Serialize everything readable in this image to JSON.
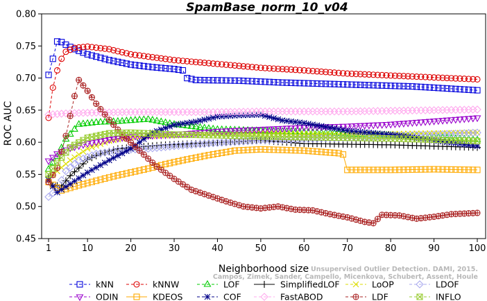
{
  "chart_data": {
    "type": "line",
    "title": "SpamBase_norm_10_v04",
    "xlabel": "Neighborhood size",
    "ylabel": "ROC AUC",
    "xlim": [
      1,
      100
    ],
    "ylim": [
      0.45,
      0.8
    ],
    "xticks": [
      1,
      10,
      20,
      30,
      40,
      50,
      60,
      70,
      80,
      90,
      100
    ],
    "yticks": [
      "0.45",
      "0.50",
      "0.55",
      "0.60",
      "0.65",
      "0.70",
      "0.75",
      "0.80"
    ],
    "grid": false,
    "legend_position": "bottom",
    "watermark": [
      "Unsupervised Outlier Detection. DAMI, 2015.",
      "Campos, Zimek, Sander, Campello, Micenkova, Schubert, Assent, Houle"
    ],
    "series": [
      {
        "name": "kNN",
        "color": "#0000dd",
        "marker": "square",
        "dashed": true,
        "points": [
          [
            1,
            0.705
          ],
          [
            2,
            0.73
          ],
          [
            3,
            0.757
          ],
          [
            4,
            0.756
          ],
          [
            5,
            0.752
          ],
          [
            7,
            0.745
          ],
          [
            10,
            0.737
          ],
          [
            15,
            0.728
          ],
          [
            20,
            0.721
          ],
          [
            25,
            0.717
          ],
          [
            30,
            0.714
          ],
          [
            32,
            0.712
          ],
          [
            33,
            0.7
          ],
          [
            35,
            0.697
          ],
          [
            45,
            0.696
          ],
          [
            55,
            0.693
          ],
          [
            65,
            0.691
          ],
          [
            75,
            0.689
          ],
          [
            85,
            0.687
          ],
          [
            100,
            0.681
          ]
        ]
      },
      {
        "name": "kNNW",
        "color": "#dd0000",
        "marker": "circle",
        "dashed": true,
        "points": [
          [
            1,
            0.638
          ],
          [
            2,
            0.685
          ],
          [
            3,
            0.712
          ],
          [
            4,
            0.73
          ],
          [
            5,
            0.741
          ],
          [
            7,
            0.747
          ],
          [
            10,
            0.749
          ],
          [
            15,
            0.745
          ],
          [
            20,
            0.737
          ],
          [
            30,
            0.728
          ],
          [
            40,
            0.722
          ],
          [
            50,
            0.716
          ],
          [
            60,
            0.712
          ],
          [
            70,
            0.707
          ],
          [
            80,
            0.704
          ],
          [
            90,
            0.701
          ],
          [
            100,
            0.698
          ]
        ]
      },
      {
        "name": "LOF",
        "color": "#00cc00",
        "marker": "triangle",
        "dashed": true,
        "points": [
          [
            1,
            0.558
          ],
          [
            3,
            0.578
          ],
          [
            5,
            0.605
          ],
          [
            8,
            0.628
          ],
          [
            12,
            0.631
          ],
          [
            18,
            0.633
          ],
          [
            24,
            0.636
          ],
          [
            30,
            0.628
          ],
          [
            40,
            0.62
          ],
          [
            50,
            0.618
          ],
          [
            60,
            0.616
          ],
          [
            70,
            0.613
          ],
          [
            80,
            0.611
          ],
          [
            90,
            0.608
          ],
          [
            100,
            0.604
          ]
        ]
      },
      {
        "name": "SimplifiedLOF",
        "color": "#000000",
        "marker": "plus",
        "dashed": false,
        "points": [
          [
            1,
            0.546
          ],
          [
            2,
            0.533
          ],
          [
            4,
            0.532
          ],
          [
            6,
            0.548
          ],
          [
            8,
            0.56
          ],
          [
            10,
            0.573
          ],
          [
            13,
            0.582
          ],
          [
            17,
            0.59
          ],
          [
            22,
            0.593
          ],
          [
            28,
            0.596
          ],
          [
            35,
            0.598
          ],
          [
            45,
            0.601
          ],
          [
            50,
            0.603
          ],
          [
            60,
            0.598
          ],
          [
            70,
            0.597
          ],
          [
            80,
            0.596
          ],
          [
            90,
            0.594
          ],
          [
            100,
            0.592
          ]
        ]
      },
      {
        "name": "LoOP",
        "color": "#dddd00",
        "marker": "x",
        "dashed": true,
        "points": [
          [
            1,
            0.543
          ],
          [
            3,
            0.555
          ],
          [
            6,
            0.572
          ],
          [
            10,
            0.59
          ],
          [
            15,
            0.602
          ],
          [
            20,
            0.608
          ],
          [
            30,
            0.611
          ],
          [
            40,
            0.613
          ],
          [
            50,
            0.614
          ],
          [
            60,
            0.613
          ],
          [
            70,
            0.612
          ],
          [
            80,
            0.613
          ],
          [
            90,
            0.614
          ],
          [
            100,
            0.615
          ]
        ]
      },
      {
        "name": "LDOF",
        "color": "#aaaaee",
        "marker": "diamond",
        "dashed": true,
        "points": [
          [
            1,
            0.515
          ],
          [
            3,
            0.527
          ],
          [
            5,
            0.555
          ],
          [
            8,
            0.572
          ],
          [
            12,
            0.582
          ],
          [
            18,
            0.588
          ],
          [
            24,
            0.59
          ],
          [
            30,
            0.594
          ],
          [
            40,
            0.599
          ],
          [
            50,
            0.603
          ],
          [
            60,
            0.605
          ],
          [
            70,
            0.607
          ],
          [
            80,
            0.61
          ],
          [
            90,
            0.612
          ],
          [
            100,
            0.615
          ]
        ]
      },
      {
        "name": "ODIN",
        "color": "#9900cc",
        "marker": "invtriangle",
        "dashed": true,
        "points": [
          [
            1,
            0.571
          ],
          [
            3,
            0.582
          ],
          [
            6,
            0.591
          ],
          [
            10,
            0.598
          ],
          [
            15,
            0.604
          ],
          [
            20,
            0.609
          ],
          [
            30,
            0.612
          ],
          [
            40,
            0.617
          ],
          [
            50,
            0.62
          ],
          [
            60,
            0.623
          ],
          [
            70,
            0.625
          ],
          [
            80,
            0.628
          ],
          [
            90,
            0.633
          ],
          [
            100,
            0.638
          ]
        ]
      },
      {
        "name": "KDEOS",
        "color": "#ffaa00",
        "marker": "square",
        "dashed": false,
        "points": [
          [
            1,
            0.538
          ],
          [
            4,
            0.525
          ],
          [
            8,
            0.533
          ],
          [
            12,
            0.54
          ],
          [
            16,
            0.547
          ],
          [
            20,
            0.553
          ],
          [
            24,
            0.559
          ],
          [
            28,
            0.566
          ],
          [
            32,
            0.572
          ],
          [
            38,
            0.58
          ],
          [
            44,
            0.587
          ],
          [
            50,
            0.589
          ],
          [
            60,
            0.587
          ],
          [
            68,
            0.583
          ],
          [
            69,
            0.581
          ],
          [
            70,
            0.557
          ],
          [
            80,
            0.557
          ],
          [
            90,
            0.558
          ],
          [
            100,
            0.557
          ]
        ]
      },
      {
        "name": "COF",
        "color": "#000088",
        "marker": "star",
        "dashed": true,
        "points": [
          [
            1,
            0.541
          ],
          [
            3,
            0.522
          ],
          [
            6,
            0.535
          ],
          [
            10,
            0.553
          ],
          [
            15,
            0.572
          ],
          [
            20,
            0.59
          ],
          [
            25,
            0.615
          ],
          [
            30,
            0.627
          ],
          [
            35,
            0.632
          ],
          [
            40,
            0.64
          ],
          [
            45,
            0.642
          ],
          [
            50,
            0.643
          ],
          [
            55,
            0.634
          ],
          [
            60,
            0.63
          ],
          [
            70,
            0.618
          ],
          [
            80,
            0.612
          ],
          [
            90,
            0.603
          ],
          [
            100,
            0.594
          ]
        ]
      },
      {
        "name": "FastABOD",
        "color": "#ffaaee",
        "marker": "diamond",
        "dashed": true,
        "points": [
          [
            1,
            0.643
          ],
          [
            5,
            0.645
          ],
          [
            10,
            0.646
          ],
          [
            20,
            0.647
          ],
          [
            30,
            0.647
          ],
          [
            40,
            0.647
          ],
          [
            50,
            0.648
          ],
          [
            60,
            0.648
          ],
          [
            70,
            0.648
          ],
          [
            80,
            0.649
          ],
          [
            90,
            0.65
          ],
          [
            100,
            0.651
          ]
        ]
      },
      {
        "name": "LDF",
        "color": "#aa2222",
        "marker": "circleplus",
        "dashed": true,
        "points": [
          [
            1,
            0.538
          ],
          [
            3,
            0.56
          ],
          [
            5,
            0.61
          ],
          [
            7,
            0.672
          ],
          [
            8,
            0.697
          ],
          [
            10,
            0.68
          ],
          [
            12,
            0.66
          ],
          [
            15,
            0.635
          ],
          [
            18,
            0.612
          ],
          [
            22,
            0.587
          ],
          [
            26,
            0.562
          ],
          [
            30,
            0.543
          ],
          [
            34,
            0.526
          ],
          [
            38,
            0.517
          ],
          [
            42,
            0.508
          ],
          [
            46,
            0.5
          ],
          [
            50,
            0.497
          ],
          [
            54,
            0.5
          ],
          [
            58,
            0.495
          ],
          [
            62,
            0.494
          ],
          [
            66,
            0.488
          ],
          [
            70,
            0.483
          ],
          [
            74,
            0.476
          ],
          [
            76,
            0.474
          ],
          [
            78,
            0.487
          ],
          [
            82,
            0.486
          ],
          [
            86,
            0.481
          ],
          [
            90,
            0.484
          ],
          [
            94,
            0.488
          ],
          [
            100,
            0.49
          ]
        ]
      },
      {
        "name": "INFLO",
        "color": "#99cc33",
        "marker": "boxcross",
        "dashed": true,
        "points": [
          [
            1,
            0.55
          ],
          [
            3,
            0.568
          ],
          [
            6,
            0.592
          ],
          [
            10,
            0.607
          ],
          [
            15,
            0.614
          ],
          [
            20,
            0.615
          ],
          [
            30,
            0.612
          ],
          [
            40,
            0.611
          ],
          [
            50,
            0.609
          ],
          [
            60,
            0.608
          ],
          [
            70,
            0.607
          ],
          [
            80,
            0.606
          ],
          [
            90,
            0.604
          ],
          [
            100,
            0.602
          ]
        ]
      }
    ]
  }
}
